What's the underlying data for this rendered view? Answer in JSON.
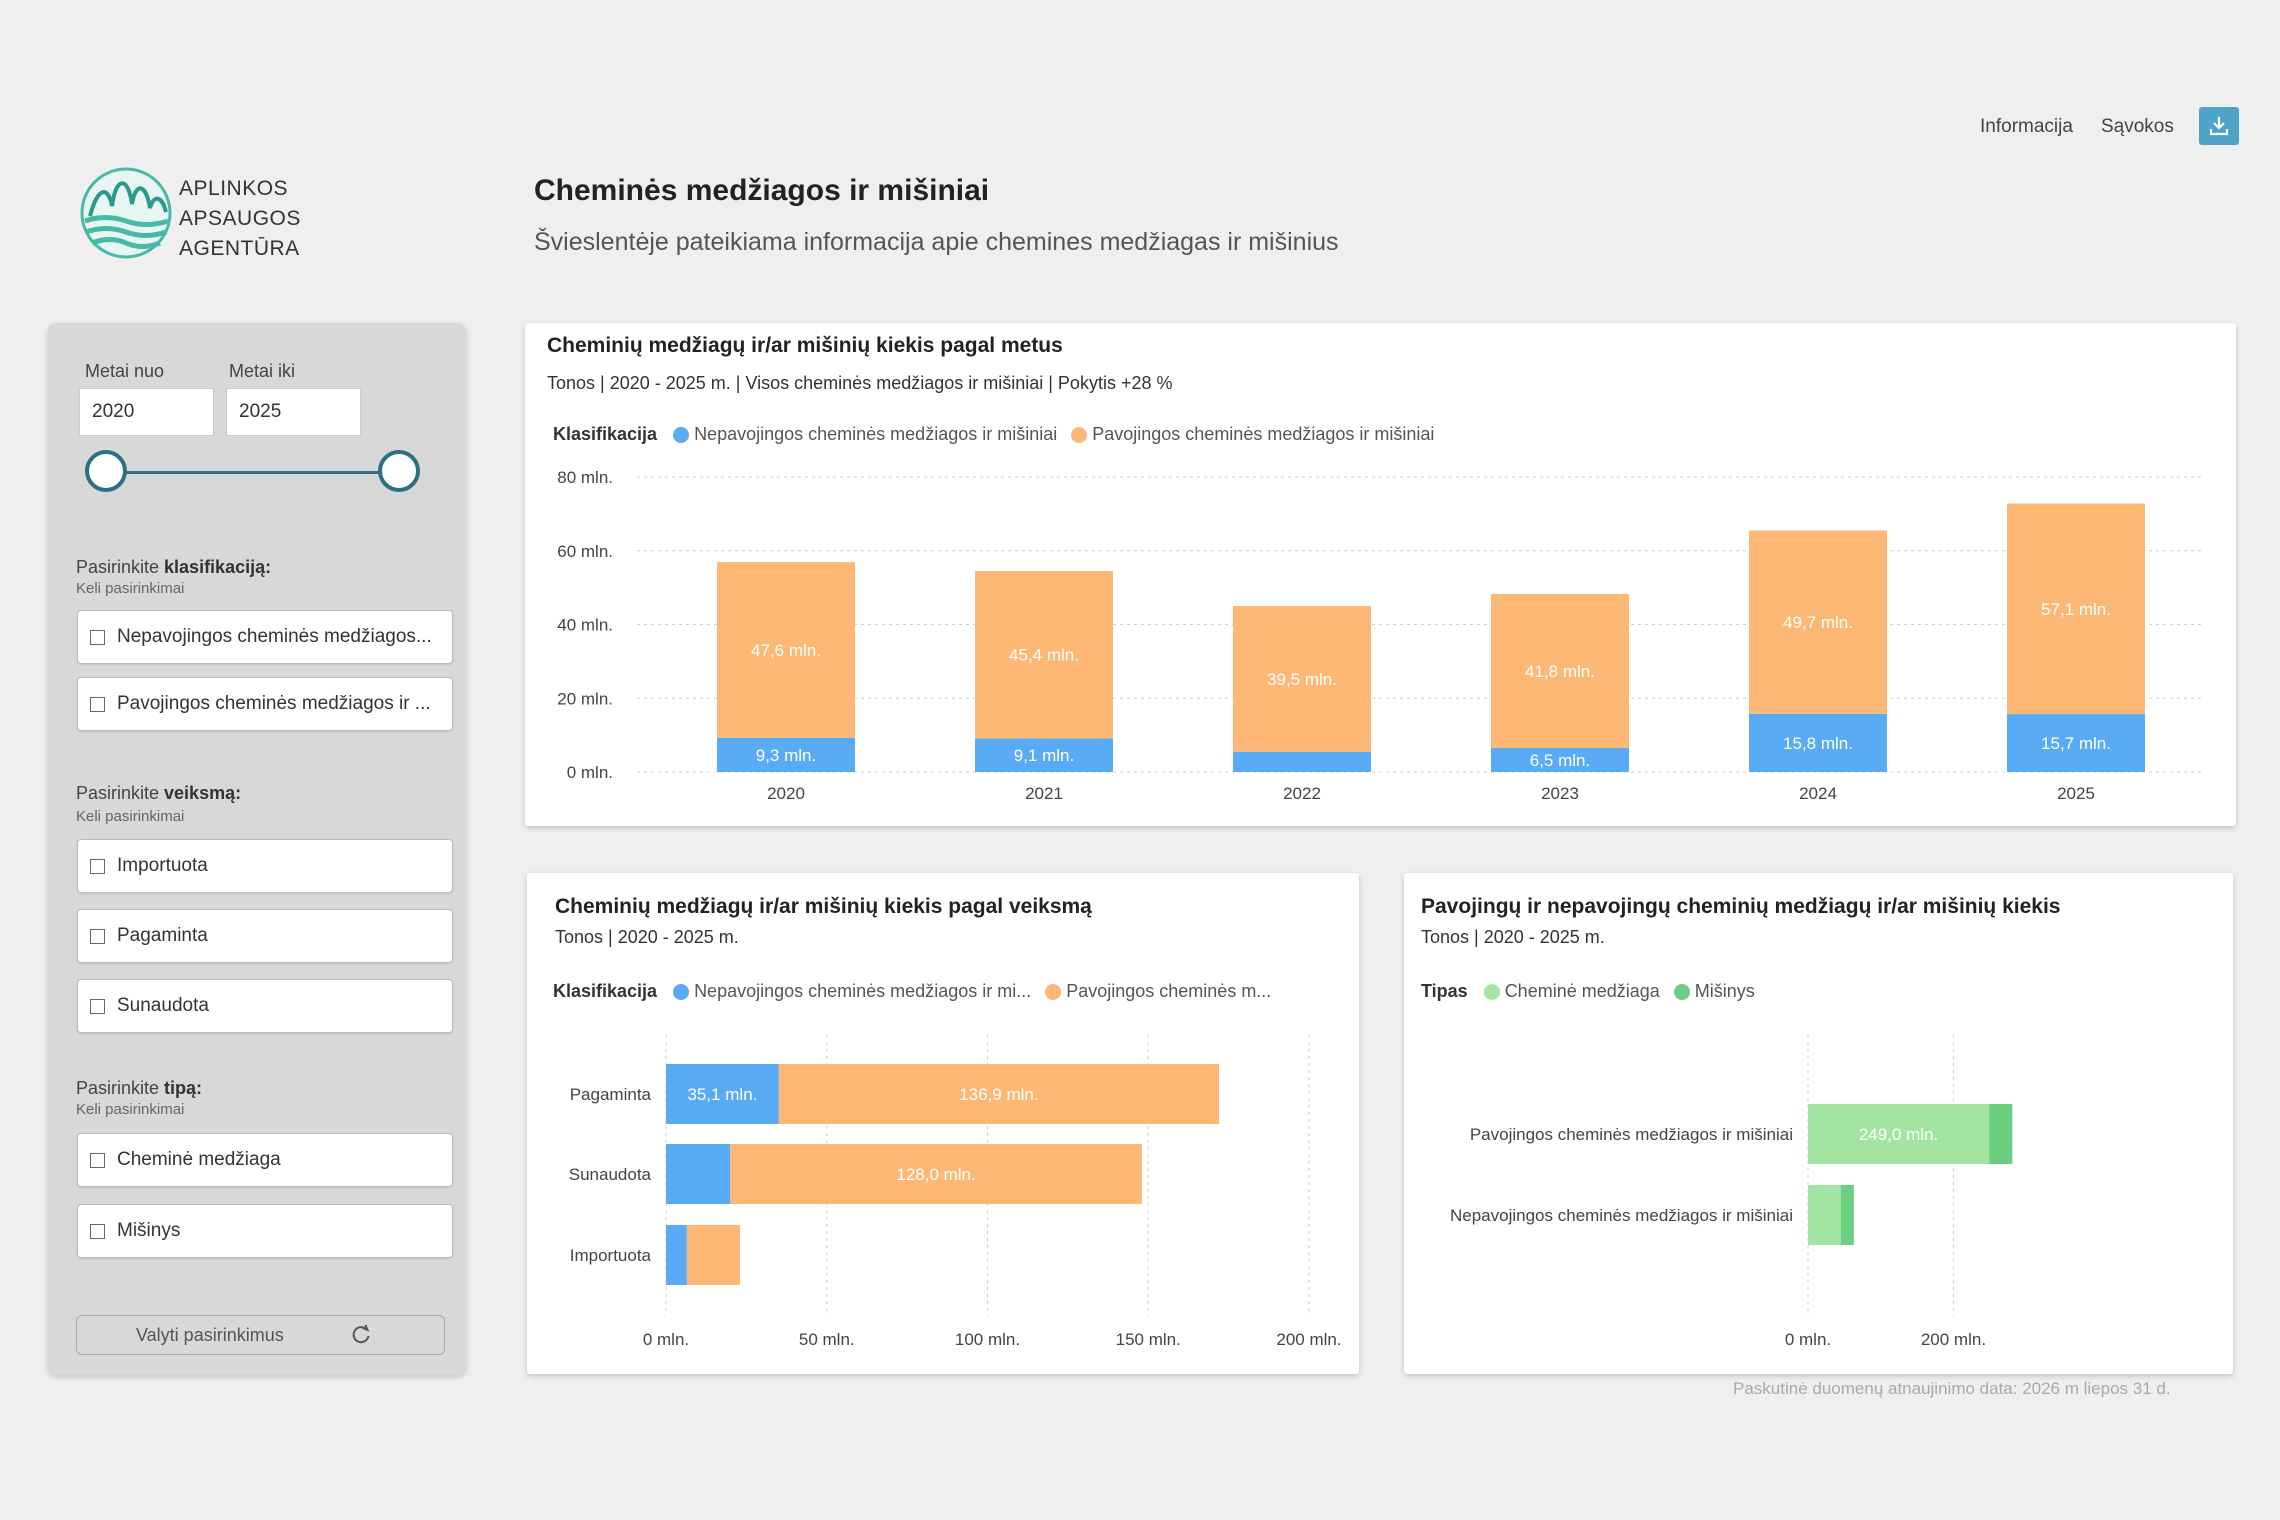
{
  "header": {
    "info_link": "Informacija",
    "terms_link": "Sąvokos",
    "download_icon": "download-icon",
    "logo_lines": [
      "APLINKOS",
      "APSAUGOS",
      "AGENTŪRA"
    ],
    "title": "Cheminės medžiagos ir mišiniai",
    "subtitle": "Švieslentėje pateikiama informacija apie chemines medžiagas ir mišinius"
  },
  "filters": {
    "year_from_label": "Metai nuo",
    "year_to_label": "Metai iki",
    "year_from": "2020",
    "year_to": "2025",
    "classification": {
      "label_prefix": "Pasirinkite ",
      "label_bold": "klasifikaciją:",
      "hint": "Keli pasirinkimai",
      "options": [
        "Nepavojingos cheminės medžiagos...",
        "Pavojingos cheminės medžiagos ir ..."
      ]
    },
    "action": {
      "label_prefix": "Pasirinkite ",
      "label_bold": "veiksmą:",
      "hint": "Keli pasirinkimai",
      "options": [
        "Importuota",
        "Pagaminta",
        "Sunaudota"
      ]
    },
    "type": {
      "label_prefix": "Pasirinkite ",
      "label_bold": "tipą:",
      "hint": "Keli pasirinkimai",
      "options": [
        "Cheminė medžiaga",
        "Mišinys"
      ]
    },
    "clear_label": "Valyti pasirinkimus",
    "clear_icon": "refresh-icon"
  },
  "colors": {
    "blue": "#5aabf5",
    "orange": "#fcb874",
    "light_green": "#a3e4a3",
    "green": "#6ccf80",
    "accent": "#2e6f86"
  },
  "chart1": {
    "title": "Cheminių medžiagų ir/ar mišinių kiekis pagal metus",
    "subtitle": "Tonos | 2020 - 2025 m. | Visos cheminės medžiagos ir mišiniai | Pokytis +28 %",
    "legend_title": "Klasifikacija",
    "legend": [
      "Nepavojingos cheminės medžiagos ir mišiniai",
      "Pavojingos cheminės medžiagos ir mišiniai"
    ]
  },
  "chart2": {
    "title": "Cheminių medžiagų ir/ar mišinių kiekis pagal veiksmą",
    "subtitle": "Tonos | 2020 - 2025 m.",
    "legend_title": "Klasifikacija",
    "legend": [
      "Nepavojingos cheminės medžiagos ir mi...",
      "Pavojingos cheminės m..."
    ]
  },
  "chart3": {
    "title": "Pavojingų ir nepavojingų cheminių medžiagų ir/ar mišinių kiekis",
    "subtitle": "Tonos | 2020 - 2025 m.",
    "legend_title": "Tipas",
    "legend": [
      "Cheminė medžiaga",
      "Mišinys"
    ]
  },
  "footer": "Paskutinė duomenų atnaujinimo data: 2026 m liepos 31 d.",
  "chart_data": [
    {
      "type": "bar",
      "stacked": true,
      "orientation": "vertical",
      "categories": [
        "2020",
        "2021",
        "2022",
        "2023",
        "2024",
        "2025"
      ],
      "series": [
        {
          "name": "Nepavojingos cheminės medžiagos ir mišiniai",
          "values": [
            9.3,
            9.1,
            5.5,
            6.5,
            15.8,
            15.7
          ],
          "labels": [
            "9,3 mln.",
            "9,1 mln.",
            "",
            "6,5 mln.",
            "15,8 mln.",
            "15,7 mln."
          ]
        },
        {
          "name": "Pavojingos cheminės medžiagos ir mišiniai",
          "values": [
            47.6,
            45.4,
            39.5,
            41.8,
            49.7,
            57.1
          ],
          "labels": [
            "47,6 mln.",
            "45,4 mln.",
            "39,5 mln.",
            "41,8 mln.",
            "49,7 mln.",
            "57,1 mln."
          ]
        }
      ],
      "yticks": [
        "0 mln.",
        "20 mln.",
        "40 mln.",
        "60 mln.",
        "80 mln."
      ],
      "ylim": [
        0,
        80
      ],
      "grid": true,
      "legend_position": "top-left"
    },
    {
      "type": "bar",
      "stacked": true,
      "orientation": "horizontal",
      "categories": [
        "Pagaminta",
        "Sunaudota",
        "Importuota"
      ],
      "series": [
        {
          "name": "Nepavojingos cheminės medžiagos ir mi...",
          "values": [
            35.1,
            20.0,
            6.5
          ],
          "labels": [
            "35,1 mln.",
            "",
            ""
          ]
        },
        {
          "name": "Pavojingos cheminės m...",
          "values": [
            136.9,
            128.0,
            16.5
          ],
          "labels": [
            "136,9 mln.",
            "128,0 mln.",
            ""
          ]
        }
      ],
      "xticks": [
        "0 mln.",
        "50 mln.",
        "100 mln.",
        "150 mln.",
        "200 mln."
      ],
      "xlim": [
        0,
        200
      ],
      "grid": true,
      "legend_position": "top-left"
    },
    {
      "type": "bar",
      "stacked": true,
      "orientation": "horizontal",
      "categories": [
        "Pavojingos cheminės medžiagos ir mišiniai",
        "Nepavojingos cheminės medžiagos ir mišiniai"
      ],
      "series": [
        {
          "name": "Cheminė medžiaga",
          "values": [
            249.0,
            45.0
          ],
          "labels": [
            "249,0 mln.",
            ""
          ]
        },
        {
          "name": "Mišinys",
          "values": [
            32.0,
            18.0
          ],
          "labels": [
            "",
            ""
          ]
        }
      ],
      "xticks": [
        "0 mln.",
        "200 mln."
      ],
      "xlim": [
        0,
        330
      ],
      "grid": true,
      "legend_position": "top-left"
    }
  ]
}
